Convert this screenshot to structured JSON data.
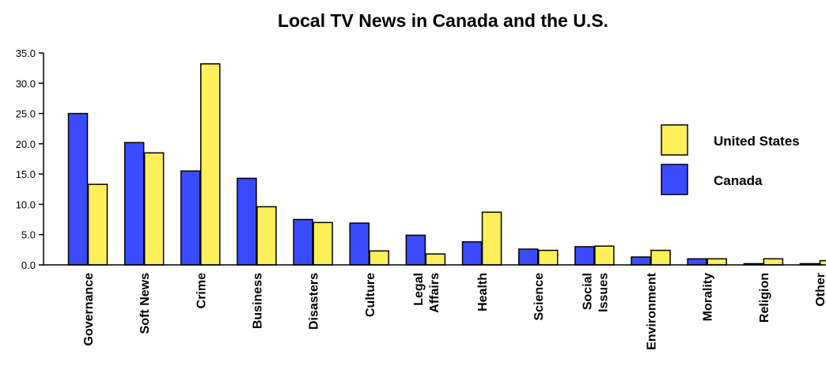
{
  "chart_data": {
    "type": "bar",
    "title": "Local TV News in Canada and the U.S.",
    "xlabel": "",
    "ylabel": "",
    "ylim": [
      0,
      35
    ],
    "yticks": [
      "35.0",
      "30.0",
      "25.0",
      "20.0",
      "15.0",
      "10.0",
      "5.0",
      "0.0"
    ],
    "ytick_values": [
      35,
      30,
      25,
      20,
      15,
      10,
      5,
      0
    ],
    "categories": [
      [
        "Governance"
      ],
      [
        "Soft News"
      ],
      [
        "Crime"
      ],
      [
        "Business"
      ],
      [
        "Disasters"
      ],
      [
        "Culture"
      ],
      [
        "Legal",
        "Affairs"
      ],
      [
        "Health"
      ],
      [
        "Science"
      ],
      [
        "Social",
        "Issues"
      ],
      [
        "Environment"
      ],
      [
        "Morality"
      ],
      [
        "Religion"
      ],
      [
        "Other"
      ]
    ],
    "series": [
      {
        "name": "Canada",
        "color": "#3b4cff",
        "values": [
          25.0,
          20.2,
          15.5,
          14.3,
          7.5,
          6.9,
          4.9,
          3.8,
          2.6,
          3.0,
          1.3,
          1.0,
          0.2,
          0.2
        ]
      },
      {
        "name": "United States",
        "color": "#ffef5a",
        "values": [
          13.3,
          18.5,
          33.2,
          9.6,
          7.0,
          2.3,
          1.8,
          8.7,
          2.4,
          3.1,
          2.4,
          1.0,
          1.0,
          0.7
        ]
      }
    ],
    "grid": false,
    "legend": {
      "placement": "right",
      "order": [
        "United States",
        "Canada"
      ]
    }
  }
}
